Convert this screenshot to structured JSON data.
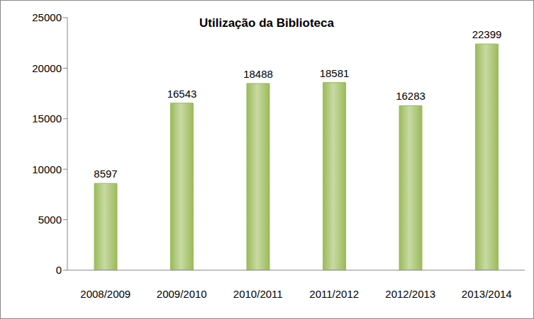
{
  "chart_data": {
    "type": "bar",
    "title": "Utilização da Biblioteca",
    "categories": [
      "2008/2009",
      "2009/2010",
      "2010/2011",
      "2011/2012",
      "2012/2013",
      "2013/2014"
    ],
    "values": [
      8597,
      16543,
      18488,
      18581,
      16283,
      22399
    ],
    "color": "#9bbb59",
    "ylim": [
      0,
      25000
    ],
    "yticks": [
      0,
      5000,
      10000,
      15000,
      20000,
      25000
    ],
    "grid": false,
    "data_labels": true
  }
}
